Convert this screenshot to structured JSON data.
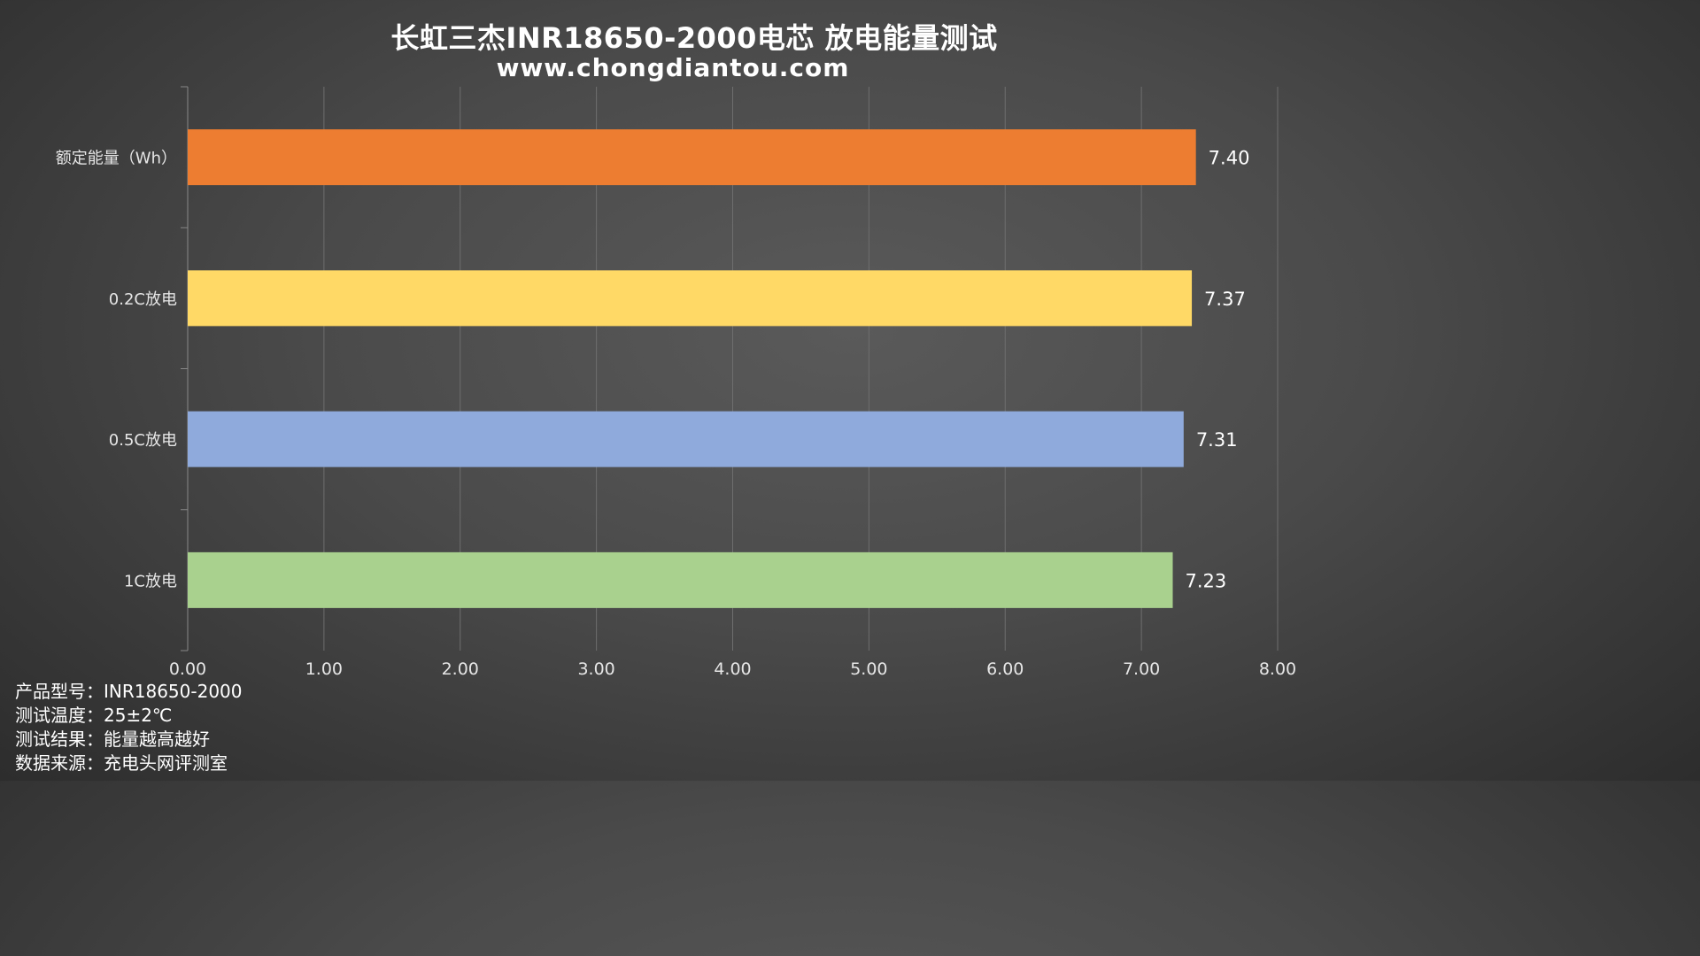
{
  "colors": {
    "background": "#4a4a4a",
    "grid": "#6e6e6e",
    "axis": "#888888",
    "label_text": "#e6e6e6"
  },
  "chart_data": {
    "type": "bar",
    "orientation": "horizontal",
    "title": "长虹三杰INR18650-2000电芯 放电能量测试",
    "subtitle": "www.chongdiantou.com",
    "categories": [
      "额定能量（Wh）",
      "0.2C放电",
      "0.5C放电",
      "1C放电"
    ],
    "values": [
      7.4,
      7.37,
      7.31,
      7.23
    ],
    "value_labels": [
      "7.40",
      "7.37",
      "7.31",
      "7.23"
    ],
    "bar_colors": [
      "#ed7d31",
      "#ffd966",
      "#8faadc",
      "#a9d18e"
    ],
    "xlim": [
      0,
      8
    ],
    "x_ticks": [
      "0.00",
      "1.00",
      "2.00",
      "3.00",
      "4.00",
      "5.00",
      "6.00",
      "7.00",
      "8.00"
    ],
    "grid": true,
    "legend": "none"
  },
  "meta": [
    {
      "label": "产品型号：",
      "value": "INR18650-2000"
    },
    {
      "label": "测试温度：",
      "value": "25±2℃"
    },
    {
      "label": "测试结果：",
      "value": "能量越高越好"
    },
    {
      "label": "数据来源：",
      "value": "充电头网评测室"
    }
  ]
}
